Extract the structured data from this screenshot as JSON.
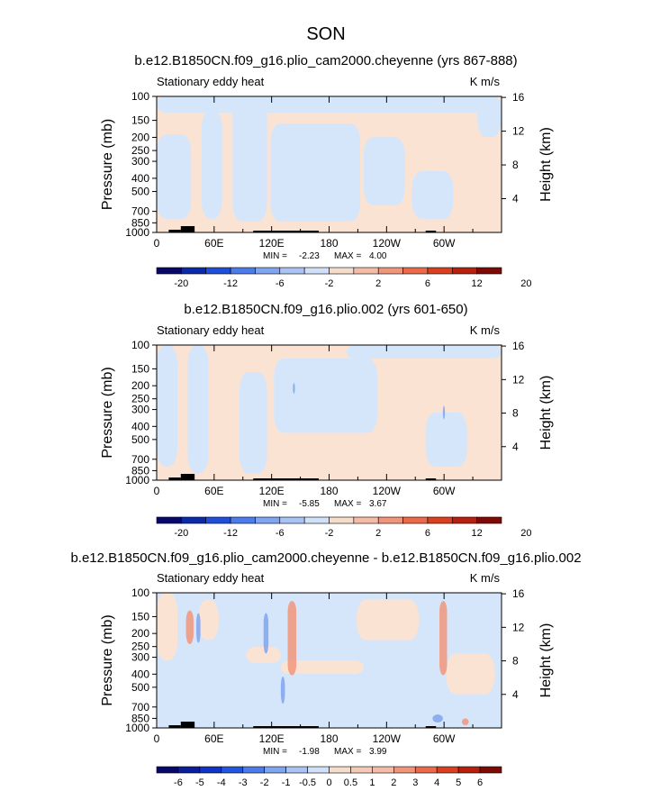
{
  "season_title": "SON",
  "chart_data": [
    {
      "type": "heatmap",
      "title": "b.e12.B1850CN.f09_g16.plio_cam2000.cheyenne (yrs 867-888)",
      "left_label": "Stationary eddy heat",
      "units": "K m/s",
      "ylabel": "Pressure (mb)",
      "ylabel_right": "Height (km)",
      "xticks": [
        "0",
        "60E",
        "120E",
        "180",
        "120W",
        "60W"
      ],
      "yticks": [
        "100",
        "150",
        "200",
        "250",
        "300",
        "400",
        "500",
        "700",
        "850",
        "1000"
      ],
      "yticks_right": [
        "16",
        "12",
        "8",
        "4"
      ],
      "stats": {
        "min_label": "MIN =",
        "min": "-2.23",
        "max_label": "MAX =",
        "max": "4.00"
      },
      "colorbar_labels": [
        "-20",
        "-12",
        "-6",
        "-2",
        "2",
        "6",
        "12",
        "20"
      ],
      "colorbar_colors": [
        "#08086b",
        "#0a2aa8",
        "#1f4fd9",
        "#4c7bea",
        "#7fa4f0",
        "#a9c3f4",
        "#d0e0f8",
        "#f6dccb",
        "#f4bca6",
        "#f1957a",
        "#ea6a4a",
        "#d9401f",
        "#b5200f",
        "#7e0a06"
      ]
    },
    {
      "type": "heatmap",
      "title": "b.e12.B1850CN.f09_g16.plio.002 (yrs 601-650)",
      "left_label": "Stationary eddy heat",
      "units": "K m/s",
      "ylabel": "Pressure (mb)",
      "ylabel_right": "Height (km)",
      "xticks": [
        "0",
        "60E",
        "120E",
        "180",
        "120W",
        "60W"
      ],
      "yticks": [
        "100",
        "150",
        "200",
        "250",
        "300",
        "400",
        "500",
        "700",
        "850",
        "1000"
      ],
      "yticks_right": [
        "16",
        "12",
        "8",
        "4"
      ],
      "stats": {
        "min_label": "MIN =",
        "min": "-5.85",
        "max_label": "MAX =",
        "max": "3.67"
      },
      "colorbar_labels": [
        "-20",
        "-12",
        "-6",
        "-2",
        "2",
        "6",
        "12",
        "20"
      ],
      "colorbar_colors": [
        "#08086b",
        "#0a2aa8",
        "#1f4fd9",
        "#4c7bea",
        "#7fa4f0",
        "#a9c3f4",
        "#d0e0f8",
        "#f6dccb",
        "#f4bca6",
        "#f1957a",
        "#ea6a4a",
        "#d9401f",
        "#b5200f",
        "#7e0a06"
      ]
    },
    {
      "type": "heatmap",
      "title": "b.e12.B1850CN.f09_g16.plio_cam2000.cheyenne - b.e12.B1850CN.f09_g16.plio.002",
      "left_label": "Stationary eddy heat",
      "units": "K m/s",
      "ylabel": "Pressure (mb)",
      "ylabel_right": "Height (km)",
      "xticks": [
        "0",
        "60E",
        "120E",
        "180",
        "120W",
        "60W"
      ],
      "yticks": [
        "100",
        "150",
        "200",
        "250",
        "300",
        "400",
        "500",
        "700",
        "850",
        "1000"
      ],
      "yticks_right": [
        "16",
        "12",
        "8",
        "4"
      ],
      "stats": {
        "min_label": "MIN =",
        "min": "-1.98",
        "max_label": "MAX =",
        "max": "3.99"
      },
      "colorbar_labels": [
        "-6",
        "-5",
        "-4",
        "-3",
        "-2",
        "-1",
        "-0.5",
        "0",
        "0.5",
        "1",
        "2",
        "3",
        "4",
        "5",
        "6"
      ],
      "colorbar_colors": [
        "#08086b",
        "#0a1f99",
        "#1034c4",
        "#2356de",
        "#4c7bea",
        "#7fa4f0",
        "#a9c3f4",
        "#d0e0f8",
        "#f6dccb",
        "#f4c9b6",
        "#f4bca6",
        "#f1957a",
        "#ea6a4a",
        "#d9401f",
        "#b5200f",
        "#7e0a06"
      ]
    }
  ],
  "colors": {
    "pos_fill": "#fbe3d4",
    "neg_fill": "#d5e6fb",
    "pos_strong": "#f1957a",
    "neg_strong": "#7fa4f0",
    "terrain": "#000000"
  }
}
